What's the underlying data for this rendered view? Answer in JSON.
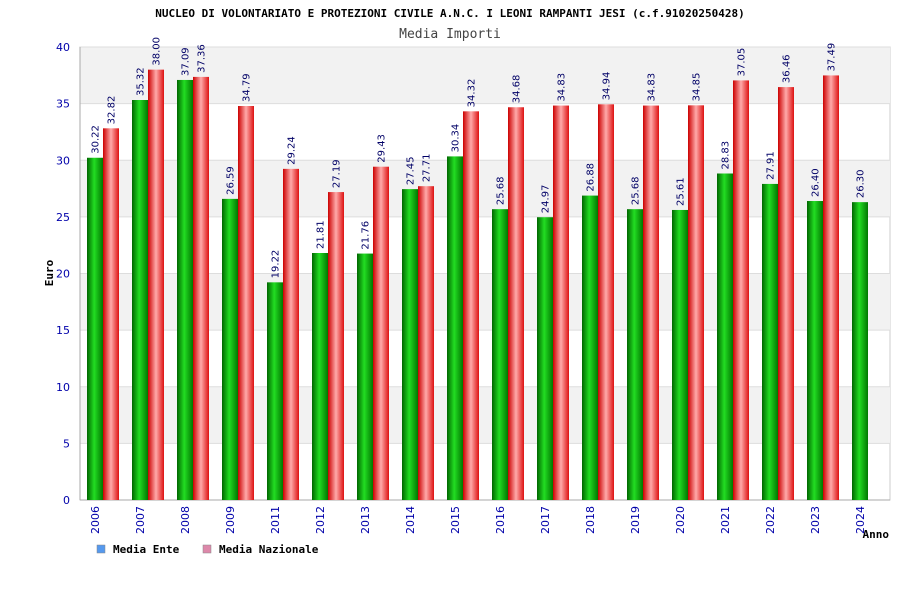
{
  "chart_data": {
    "type": "bar",
    "title": "NUCLEO DI VOLONTARIATO E PROTEZIONI CIVILE A.N.C. I LEONI RAMPANTI JESI (c.f.91020250428)",
    "subtitle": "Media Importi",
    "xlabel": "Anno",
    "ylabel": "Euro",
    "ylim": [
      0,
      40
    ],
    "yticks": [
      0,
      5,
      10,
      15,
      20,
      25,
      30,
      35,
      40
    ],
    "grid": true,
    "legend_position": "bottom-left",
    "categories": [
      "2006",
      "2007",
      "2008",
      "2009",
      "2011",
      "2012",
      "2013",
      "2014",
      "2015",
      "2016",
      "2017",
      "2018",
      "2019",
      "2020",
      "2021",
      "2022",
      "2023",
      "2024"
    ],
    "series": [
      {
        "name": "Media Ente",
        "color": "#00aa00",
        "legend_color": "#5599ee",
        "values": [
          30.22,
          35.32,
          37.09,
          26.59,
          19.22,
          21.81,
          21.76,
          27.45,
          30.34,
          25.68,
          24.97,
          26.88,
          25.68,
          25.61,
          28.83,
          27.91,
          26.4,
          26.3
        ],
        "labels": [
          "30.22",
          "35.32",
          "37.09",
          "26.59",
          "19.22",
          "21.81",
          "21.76",
          "27.45",
          "30.34",
          "25.68",
          "24.97",
          "26.88",
          "25.68",
          "25.61",
          "28.83",
          "27.91",
          "26.40",
          "26.30"
        ]
      },
      {
        "name": "Media Nazionale",
        "color": "#ee2222",
        "legend_color": "#dd88aa",
        "values": [
          32.82,
          38.0,
          37.36,
          34.79,
          29.24,
          27.19,
          29.43,
          27.71,
          34.32,
          34.68,
          34.83,
          34.94,
          34.83,
          34.85,
          37.05,
          36.46,
          37.49,
          null
        ],
        "labels": [
          "32.82",
          "38.00",
          "37.36",
          "34.79",
          "29.24",
          "27.19",
          "29.43",
          "27.71",
          "34.32",
          "34.68",
          "34.83",
          "34.94",
          "34.83",
          "34.85",
          "37.05",
          "36.46",
          "37.49",
          ""
        ]
      }
    ]
  }
}
